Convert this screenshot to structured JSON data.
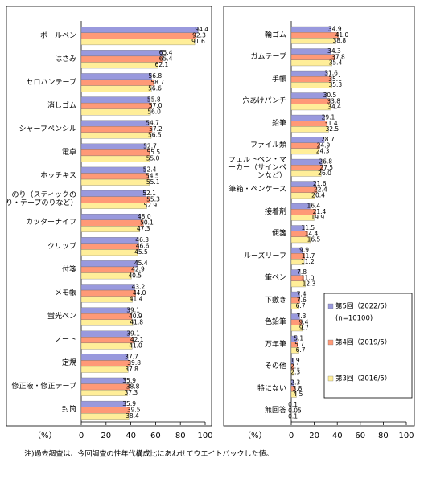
{
  "chart_data": [
    {
      "type": "bar",
      "orientation": "horizontal",
      "axis_label": "（%）",
      "categories": [
        "ボールペン",
        "はさみ",
        "セロハンテープ",
        "消しゴム",
        "シャープペンシル",
        "電卓",
        "ホッチキス",
        "のり（スティックのり・テープのりなど）",
        "カッターナイフ",
        "クリップ",
        "付箋",
        "メモ帳",
        "蛍光ペン",
        "ノート",
        "定規",
        "修正液・修正テープ",
        "封筒"
      ],
      "series": [
        {
          "color": "#9999dd",
          "values": [
            94.4,
            65.4,
            56.8,
            55.8,
            54.7,
            52.7,
            52.4,
            52.1,
            48.0,
            46.3,
            45.4,
            43.2,
            39.1,
            39.1,
            37.7,
            35.9,
            35.9
          ],
          "value_labels": [
            "94.4",
            "65.4",
            "56.8",
            "55.8",
            "54.7",
            "52.7",
            "52.4",
            "52.1",
            "48.0",
            "46.3",
            "45.4",
            "43.2",
            "39.1",
            "39.1",
            "37.7",
            "35.9",
            "35.9"
          ]
        },
        {
          "color": "#ff9977",
          "values": [
            92.3,
            65.4,
            58.7,
            57.0,
            57.2,
            55.5,
            54.5,
            55.3,
            50.1,
            46.6,
            42.9,
            44.0,
            40.9,
            42.1,
            39.8,
            38.8,
            39.5
          ],
          "value_labels": [
            "92.3",
            "65.4",
            "58.7",
            "57.0",
            "57.2",
            "55.5",
            "54.5",
            "55.3",
            "50.1",
            "46.6",
            "42.9",
            "44.0",
            "40.9",
            "42.1",
            "39.8",
            "38.8",
            "39.5"
          ]
        },
        {
          "color": "#ffee99",
          "values": [
            91.6,
            62.1,
            56.6,
            56.0,
            56.5,
            55.0,
            55.1,
            52.9,
            47.3,
            45.5,
            40.5,
            41.4,
            41.8,
            41.0,
            37.8,
            37.3,
            38.4
          ],
          "value_labels": [
            "91.6",
            "62.1",
            "56.6",
            "56.0",
            "56.5",
            "55.0",
            "55.1",
            "52.9",
            "47.3",
            "45.5",
            "40.5",
            "41.4",
            "41.8",
            "41.0",
            "37.8",
            "37.3",
            "38.4"
          ]
        }
      ],
      "xlim": [
        0,
        100
      ],
      "xticks": [
        0,
        20,
        40,
        60,
        80,
        100
      ]
    },
    {
      "type": "bar",
      "orientation": "horizontal",
      "axis_label": "（%）",
      "categories": [
        "輪ゴム",
        "ガムテープ",
        "手帳",
        "穴あけパンチ",
        "鉛筆",
        "ファイル類",
        "フェルトペン・マーカー（サインペンなど）",
        "筆箱・ペンケース",
        "接着剤",
        "便箋",
        "ルーズリーフ",
        "筆ペン",
        "下敷き",
        "色鉛筆",
        "万年筆",
        "その他",
        "特にない",
        "無回答"
      ],
      "series": [
        {
          "name": "第5回（2022/5）",
          "color": "#9999dd",
          "values": [
            34.9,
            34.3,
            31.6,
            30.5,
            29.1,
            28.7,
            26.8,
            21.6,
            16.4,
            11.5,
            9.9,
            7.8,
            7.4,
            7.3,
            5.1,
            1.9,
            2.3,
            0.1
          ],
          "value_labels": [
            "34.9",
            "34.3",
            "31.6",
            "30.5",
            "29.1",
            "28.7",
            "26.8",
            "21.6",
            "16.4",
            "11.5",
            "9.9",
            "7.8",
            "7.4",
            "7.3",
            "5.1",
            "1.9",
            "2.3",
            "0.1"
          ]
        },
        {
          "name": "第4回（2019/5）",
          "color": "#ff9977",
          "values": [
            41.0,
            37.8,
            35.1,
            33.8,
            31.4,
            24.9,
            27.5,
            22.4,
            21.4,
            14.4,
            11.7,
            11.0,
            7.6,
            9.4,
            5.7,
            2.1,
            3.8,
            0.05
          ],
          "value_labels": [
            "41.0",
            "37.8",
            "35.1",
            "33.8",
            "31.4",
            "24.9",
            "27.5",
            "22.4",
            "21.4",
            "14.4",
            "11.7",
            "11.0",
            "7.6",
            "9.4",
            "5.7",
            "2.1",
            "3.8",
            "0.05"
          ]
        },
        {
          "name": "第3回（2016/5）",
          "color": "#ffee99",
          "values": [
            38.8,
            35.4,
            35.3,
            34.4,
            32.5,
            24.3,
            26.0,
            20.4,
            19.9,
            16.5,
            11.2,
            12.3,
            6.7,
            9.7,
            6.7,
            2.3,
            4.5,
            0.1
          ],
          "value_labels": [
            "38.8",
            "35.4",
            "35.3",
            "34.4",
            "32.5",
            "24.3",
            "26.0",
            "20.4",
            "19.9",
            "16.5",
            "11.2",
            "12.3",
            "6.7",
            "9.7",
            "6.7",
            "2.3",
            "4.5",
            "0.1"
          ]
        }
      ],
      "legend_note": "(n=10100)",
      "legend": "lower right",
      "xlim": [
        0,
        100
      ],
      "xticks": [
        0,
        20,
        40,
        60,
        80,
        100
      ]
    }
  ],
  "footnote": "注)過去調査は、今回調査の性年代構成比にあわせてウエイトバックした値。"
}
